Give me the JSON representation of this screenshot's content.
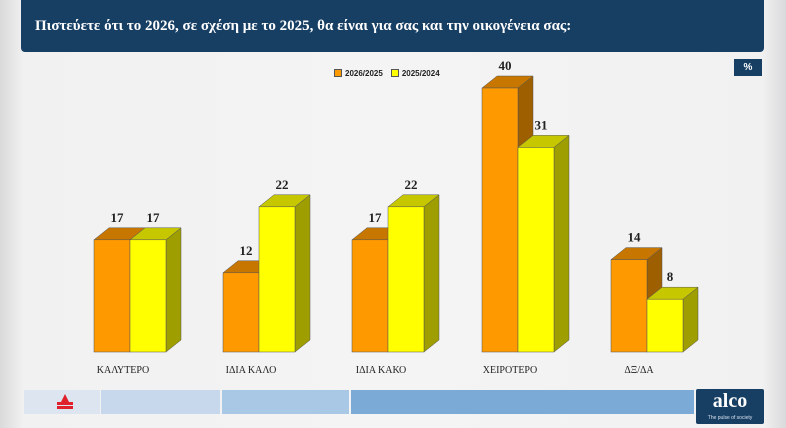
{
  "header": {
    "question": "Πιστεύετε ότι το 2026, σε σχέση με το 2025, θα είναι για σας και την οικογένεια σας:"
  },
  "unit_badge": "%",
  "colors": {
    "series_1": "#ff9900",
    "series_2": "#ffff00",
    "header_bg": "#173e63"
  },
  "footer": {
    "brand": "alco",
    "tagline": "The pulse of society",
    "left_logo_icon": "red-lotus-logo"
  },
  "chart_data": {
    "type": "bar",
    "categories": [
      "ΚΑΛΥΤΕΡΟ",
      "ΙΔΙΑ ΚΑΛΟ",
      "ΙΔΙΑ ΚΑΚΟ",
      "ΧΕΙΡΟΤΕΡΟ",
      "ΔΞ/ΔΑ"
    ],
    "series": [
      {
        "name": "2026/2025",
        "values": [
          17,
          12,
          17,
          40,
          14
        ],
        "color": "#ff9900"
      },
      {
        "name": "2025/2024",
        "values": [
          17,
          22,
          22,
          31,
          8
        ],
        "color": "#ffff00"
      }
    ],
    "ylim": [
      0,
      40
    ],
    "grid": false,
    "legend_position": "top-center",
    "data_labels": true,
    "style": "3d-column"
  }
}
